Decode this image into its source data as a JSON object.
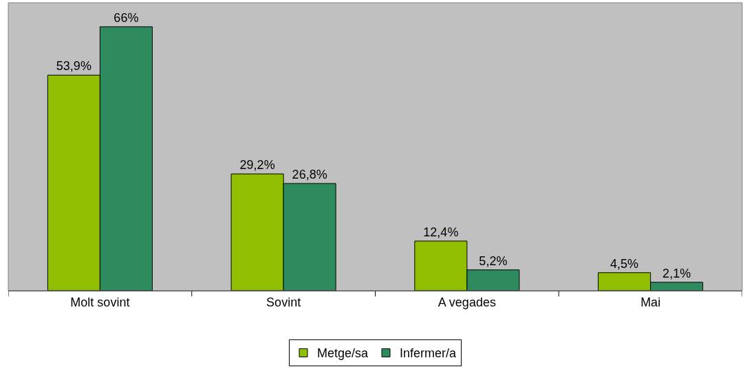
{
  "chart_data": {
    "type": "bar",
    "categories": [
      "Molt sovint",
      "Sovint",
      "A vegades",
      "Mai"
    ],
    "series": [
      {
        "name": "Metge/sa",
        "color": "#8fbf00",
        "values": [
          53.9,
          29.2,
          12.4,
          4.5
        ],
        "value_labels": [
          "53,9%",
          "29,2%",
          "12,4%",
          "4,5%"
        ]
      },
      {
        "name": "Infermer/a",
        "color": "#2e8b5e",
        "values": [
          66,
          26.8,
          5.2,
          2.1
        ],
        "value_labels": [
          "66%",
          "26,8%",
          "5,2%",
          "2,1%"
        ]
      }
    ],
    "ylim": [
      0,
      72
    ],
    "legend": "bottom",
    "grid": false
  }
}
